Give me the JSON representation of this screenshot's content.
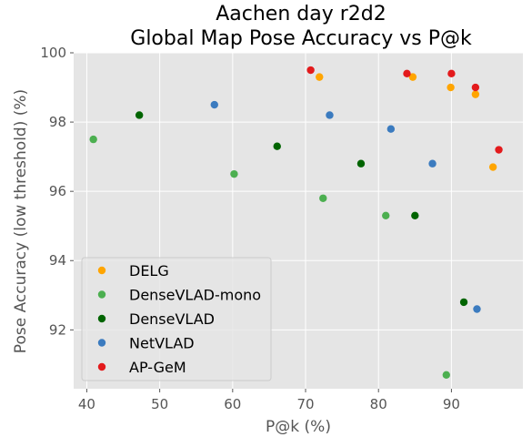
{
  "chart_data": {
    "type": "scatter",
    "title": "Aachen day r2d2\nGlobal Map Pose Accuracy vs P@k",
    "xlabel": "P@k (%)",
    "ylabel": "Pose Accuracy (low threshold) (%)",
    "xlim": [
      38.2,
      99.8
    ],
    "ylim": [
      90.3,
      100.0
    ],
    "xticks": [
      40,
      50,
      60,
      70,
      80,
      90
    ],
    "yticks": [
      92,
      94,
      96,
      98,
      100
    ],
    "grid": true,
    "legend_position": "lower-left",
    "series": [
      {
        "name": "DELG",
        "color": "#ffa500",
        "points": [
          [
            71.9,
            99.3
          ],
          [
            84.7,
            99.3
          ],
          [
            89.9,
            99.0
          ],
          [
            93.3,
            98.8
          ],
          [
            95.7,
            96.7
          ]
        ]
      },
      {
        "name": "DenseVLAD-mono",
        "color": "#4caf50",
        "points": [
          [
            40.9,
            97.5
          ],
          [
            60.2,
            96.5
          ],
          [
            72.4,
            95.8
          ],
          [
            81.0,
            95.3
          ],
          [
            89.3,
            90.7
          ]
        ]
      },
      {
        "name": "DenseVLAD",
        "color": "#006400",
        "points": [
          [
            47.2,
            98.2
          ],
          [
            66.1,
            97.3
          ],
          [
            77.6,
            96.8
          ],
          [
            85.0,
            95.3
          ],
          [
            91.7,
            92.8
          ]
        ]
      },
      {
        "name": "NetVLAD",
        "color": "#3b7bbf",
        "points": [
          [
            57.5,
            98.5
          ],
          [
            73.3,
            98.2
          ],
          [
            81.7,
            97.8
          ],
          [
            87.4,
            96.8
          ],
          [
            93.5,
            92.6
          ]
        ]
      },
      {
        "name": "AP-GeM",
        "color": "#e31a1c",
        "points": [
          [
            70.7,
            99.5
          ],
          [
            83.9,
            99.4
          ],
          [
            90.0,
            99.4
          ],
          [
            93.3,
            99.0
          ],
          [
            96.5,
            97.2
          ]
        ]
      }
    ]
  }
}
